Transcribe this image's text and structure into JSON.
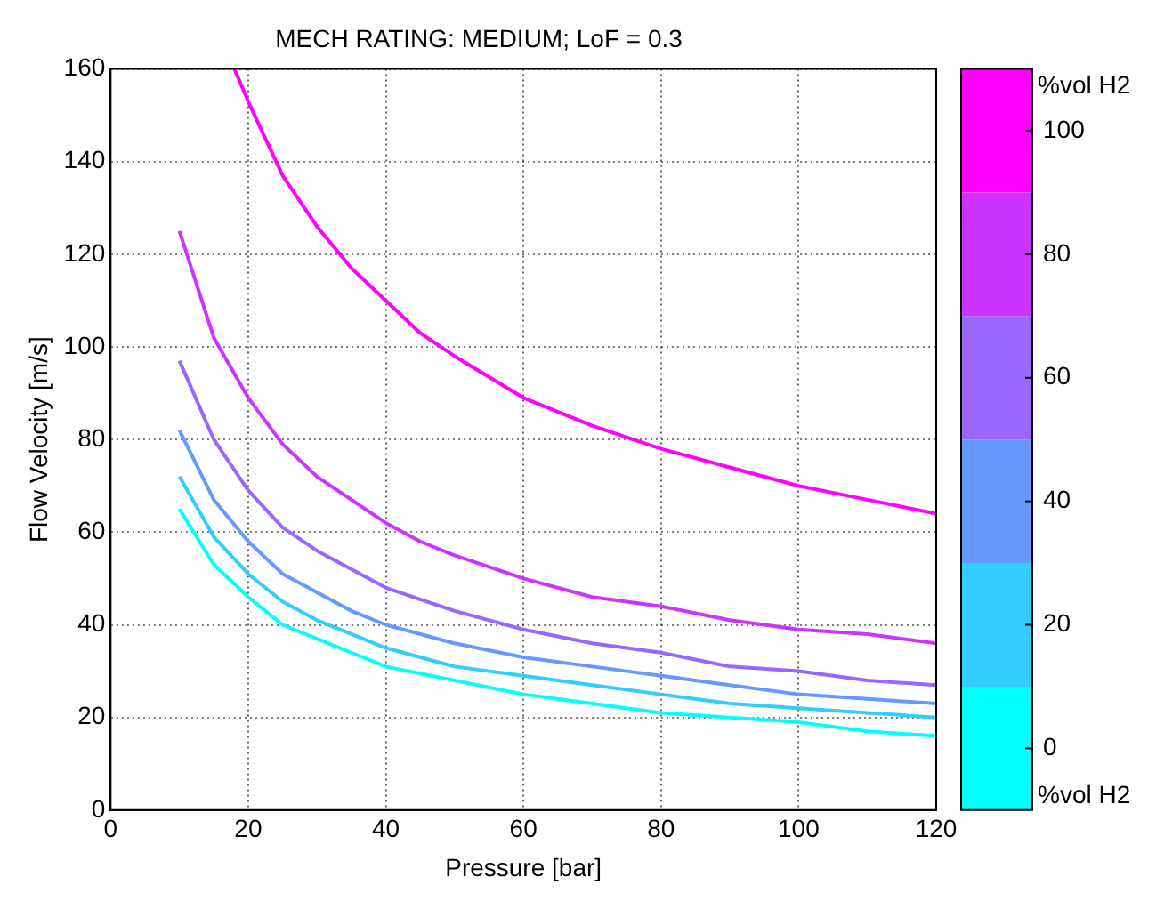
{
  "chart_data": {
    "type": "line",
    "title": "MECH RATING: MEDIUM; LoF = 0.3",
    "xlabel": "Pressure [bar]",
    "ylabel": "Flow Velocity [m/s]",
    "clabel": "%vol H2",
    "xlim": [
      0,
      120
    ],
    "xticks": [
      0,
      20,
      40,
      60,
      80,
      100,
      120
    ],
    "ylim": [
      0,
      160
    ],
    "yticks": [
      0,
      20,
      40,
      60,
      80,
      100,
      120,
      140,
      160
    ],
    "clim": [
      -10,
      110
    ],
    "cticks": [
      0,
      20,
      40,
      60,
      80,
      100
    ],
    "grid": true,
    "marker": "none",
    "line_style": "solid",
    "series": [
      {
        "color": "#00ffff",
        "x": [
          10,
          15,
          20,
          25,
          30,
          35,
          40,
          50,
          60,
          70,
          80,
          90,
          100,
          110,
          120
        ],
        "values": [
          65,
          53,
          46,
          40,
          37,
          34,
          31,
          28,
          25,
          23,
          21,
          20,
          19,
          17,
          16
        ]
      },
      {
        "color": "#33ccff",
        "x": [
          10,
          15,
          20,
          25,
          30,
          35,
          40,
          50,
          60,
          70,
          80,
          90,
          100,
          110,
          120
        ],
        "values": [
          72,
          59,
          51,
          45,
          41,
          38,
          35,
          31,
          29,
          27,
          25,
          23,
          22,
          21,
          20
        ]
      },
      {
        "color": "#6699ff",
        "x": [
          10,
          15,
          20,
          25,
          30,
          35,
          40,
          50,
          60,
          70,
          80,
          90,
          100,
          110,
          120
        ],
        "values": [
          82,
          67,
          58,
          51,
          47,
          43,
          40,
          36,
          33,
          31,
          29,
          27,
          25,
          24,
          23
        ]
      },
      {
        "color": "#9966ff",
        "x": [
          10,
          15,
          20,
          25,
          30,
          35,
          40,
          50,
          60,
          70,
          80,
          90,
          100,
          110,
          120
        ],
        "values": [
          97,
          80,
          69,
          61,
          56,
          52,
          48,
          43,
          39,
          36,
          34,
          31,
          30,
          28,
          27
        ]
      },
      {
        "color": "#cc33ff",
        "x": [
          10,
          15,
          20,
          25,
          30,
          35,
          40,
          45,
          50,
          60,
          70,
          80,
          90,
          100,
          110,
          120
        ],
        "values": [
          125,
          102,
          89,
          79,
          72,
          67,
          62,
          58,
          55,
          50,
          46,
          44,
          41,
          39,
          38,
          36
        ]
      },
      {
        "color": "#ff00ff",
        "x": [
          18,
          20,
          25,
          30,
          35,
          40,
          45,
          50,
          60,
          70,
          80,
          90,
          100,
          110,
          120
        ],
        "values": [
          160,
          153,
          137,
          126,
          117,
          110,
          103,
          98,
          89,
          83,
          78,
          74,
          70,
          67,
          64
        ]
      }
    ]
  }
}
